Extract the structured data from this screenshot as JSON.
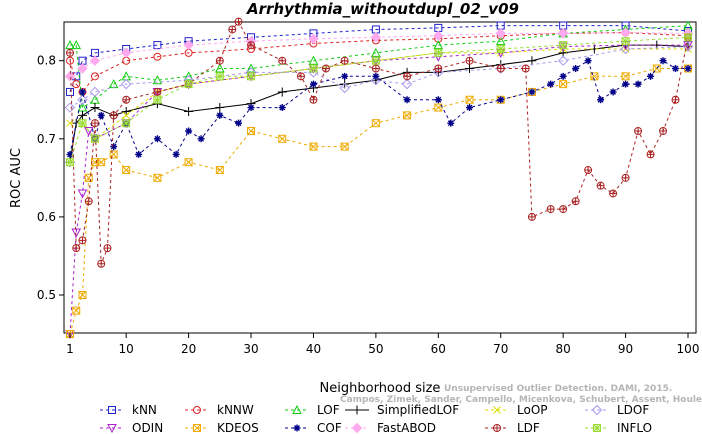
{
  "chart_data": {
    "type": "line",
    "title": "Arrhythmia_withoutdupl_02_v09",
    "xlabel": "Neighborhood size",
    "ylabel": "ROC AUC",
    "xlim": [
      0,
      100
    ],
    "ylim": [
      0.45,
      0.85
    ],
    "x_ticks": [
      1,
      10,
      20,
      30,
      40,
      50,
      60,
      70,
      80,
      90,
      100
    ],
    "y_ticks": [
      0.5,
      0.6,
      0.7,
      0.8
    ],
    "grid": false,
    "legend_position": "bottom",
    "watermark": [
      "Unsupervised Outlier Detection. DAMI, 2015.",
      "Campos, Zimek, Sander, Campello, Micenkova, Schubert, Assent, Houle"
    ],
    "series": [
      {
        "name": "kNN",
        "color": "#2222cc",
        "marker": "square",
        "dash": "3,3",
        "points": [
          [
            1,
            0.76
          ],
          [
            2,
            0.78
          ],
          [
            3,
            0.8
          ],
          [
            5,
            0.81
          ],
          [
            10,
            0.815
          ],
          [
            15,
            0.82
          ],
          [
            20,
            0.825
          ],
          [
            30,
            0.83
          ],
          [
            40,
            0.835
          ],
          [
            50,
            0.84
          ],
          [
            60,
            0.842
          ],
          [
            70,
            0.845
          ],
          [
            80,
            0.845
          ],
          [
            90,
            0.845
          ],
          [
            100,
            0.838
          ]
        ]
      },
      {
        "name": "kNNW",
        "color": "#dd2222",
        "marker": "circle",
        "dash": "3,3",
        "points": [
          [
            1,
            0.8
          ],
          [
            2,
            0.77
          ],
          [
            3,
            0.76
          ],
          [
            5,
            0.78
          ],
          [
            10,
            0.8
          ],
          [
            15,
            0.805
          ],
          [
            20,
            0.81
          ],
          [
            30,
            0.815
          ],
          [
            40,
            0.822
          ],
          [
            50,
            0.826
          ],
          [
            60,
            0.828
          ],
          [
            70,
            0.832
          ],
          [
            80,
            0.835
          ],
          [
            90,
            0.836
          ],
          [
            100,
            0.832
          ]
        ]
      },
      {
        "name": "LOF",
        "color": "#11cc11",
        "marker": "triangle",
        "dash": "3,3",
        "points": [
          [
            1,
            0.82
          ],
          [
            2,
            0.82
          ],
          [
            3,
            0.74
          ],
          [
            5,
            0.75
          ],
          [
            8,
            0.77
          ],
          [
            10,
            0.78
          ],
          [
            15,
            0.775
          ],
          [
            20,
            0.78
          ],
          [
            25,
            0.79
          ],
          [
            30,
            0.79
          ],
          [
            40,
            0.8
          ],
          [
            50,
            0.81
          ],
          [
            60,
            0.82
          ],
          [
            70,
            0.825
          ],
          [
            80,
            0.835
          ],
          [
            90,
            0.84
          ],
          [
            100,
            0.845
          ]
        ]
      },
      {
        "name": "SimplifiedLOF",
        "color": "#000000",
        "marker": "plus",
        "dash": "",
        "points": [
          [
            1,
            0.67
          ],
          [
            2,
            0.72
          ],
          [
            3,
            0.73
          ],
          [
            5,
            0.74
          ],
          [
            8,
            0.73
          ],
          [
            10,
            0.735
          ],
          [
            15,
            0.745
          ],
          [
            20,
            0.735
          ],
          [
            25,
            0.74
          ],
          [
            30,
            0.745
          ],
          [
            35,
            0.76
          ],
          [
            40,
            0.765
          ],
          [
            45,
            0.77
          ],
          [
            50,
            0.775
          ],
          [
            55,
            0.785
          ],
          [
            60,
            0.785
          ],
          [
            65,
            0.79
          ],
          [
            70,
            0.795
          ],
          [
            75,
            0.8
          ],
          [
            80,
            0.81
          ],
          [
            85,
            0.815
          ],
          [
            90,
            0.82
          ],
          [
            95,
            0.82
          ],
          [
            100,
            0.818
          ]
        ]
      },
      {
        "name": "LoOP",
        "color": "#dddd00",
        "marker": "x",
        "dash": "3,3",
        "points": [
          [
            1,
            0.72
          ],
          [
            3,
            0.72
          ],
          [
            5,
            0.7
          ],
          [
            10,
            0.73
          ],
          [
            15,
            0.76
          ],
          [
            20,
            0.77
          ],
          [
            30,
            0.78
          ],
          [
            40,
            0.79
          ],
          [
            50,
            0.8
          ],
          [
            60,
            0.81
          ],
          [
            70,
            0.81
          ],
          [
            80,
            0.815
          ],
          [
            90,
            0.815
          ],
          [
            100,
            0.815
          ]
        ]
      },
      {
        "name": "LDOF",
        "color": "#aa99ee",
        "marker": "diamond",
        "dash": "3,3",
        "points": [
          [
            1,
            0.74
          ],
          [
            3,
            0.75
          ],
          [
            5,
            0.76
          ],
          [
            10,
            0.77
          ],
          [
            20,
            0.775
          ],
          [
            30,
            0.785
          ],
          [
            40,
            0.785
          ],
          [
            45,
            0.765
          ],
          [
            50,
            0.775
          ],
          [
            55,
            0.77
          ],
          [
            60,
            0.785
          ],
          [
            70,
            0.79
          ],
          [
            80,
            0.8
          ],
          [
            90,
            0.815
          ],
          [
            100,
            0.818
          ]
        ]
      },
      {
        "name": "ODIN",
        "color": "#aa22cc",
        "marker": "triangle-down",
        "dash": "3,3",
        "points": [
          [
            1,
            0.45
          ],
          [
            2,
            0.58
          ],
          [
            3,
            0.63
          ],
          [
            4,
            0.71
          ],
          [
            5,
            0.7
          ],
          [
            10,
            0.72
          ],
          [
            15,
            0.76
          ],
          [
            20,
            0.77
          ],
          [
            30,
            0.78
          ],
          [
            40,
            0.79
          ],
          [
            50,
            0.8
          ],
          [
            60,
            0.805
          ],
          [
            70,
            0.81
          ],
          [
            80,
            0.818
          ],
          [
            90,
            0.82
          ],
          [
            100,
            0.82
          ]
        ]
      },
      {
        "name": "KDEOS",
        "color": "#eeaa00",
        "marker": "square-x",
        "dash": "3,3",
        "points": [
          [
            1,
            0.45
          ],
          [
            2,
            0.48
          ],
          [
            3,
            0.5
          ],
          [
            4,
            0.65
          ],
          [
            5,
            0.67
          ],
          [
            6,
            0.67
          ],
          [
            8,
            0.68
          ],
          [
            10,
            0.66
          ],
          [
            15,
            0.65
          ],
          [
            20,
            0.67
          ],
          [
            25,
            0.66
          ],
          [
            30,
            0.71
          ],
          [
            35,
            0.7
          ],
          [
            40,
            0.69
          ],
          [
            45,
            0.69
          ],
          [
            50,
            0.72
          ],
          [
            55,
            0.73
          ],
          [
            60,
            0.74
          ],
          [
            65,
            0.75
          ],
          [
            70,
            0.75
          ],
          [
            75,
            0.76
          ],
          [
            80,
            0.77
          ],
          [
            85,
            0.78
          ],
          [
            90,
            0.78
          ],
          [
            95,
            0.79
          ],
          [
            100,
            0.79
          ]
        ]
      },
      {
        "name": "COF",
        "color": "#000088",
        "marker": "asterisk",
        "dash": "3,3",
        "points": [
          [
            1,
            0.68
          ],
          [
            3,
            0.76
          ],
          [
            5,
            0.7
          ],
          [
            6,
            0.73
          ],
          [
            8,
            0.69
          ],
          [
            10,
            0.72
          ],
          [
            12,
            0.68
          ],
          [
            15,
            0.7
          ],
          [
            18,
            0.68
          ],
          [
            20,
            0.71
          ],
          [
            22,
            0.7
          ],
          [
            25,
            0.73
          ],
          [
            28,
            0.72
          ],
          [
            30,
            0.74
          ],
          [
            35,
            0.74
          ],
          [
            40,
            0.77
          ],
          [
            45,
            0.78
          ],
          [
            50,
            0.78
          ],
          [
            55,
            0.75
          ],
          [
            60,
            0.75
          ],
          [
            62,
            0.72
          ],
          [
            65,
            0.74
          ],
          [
            70,
            0.75
          ],
          [
            75,
            0.76
          ],
          [
            78,
            0.77
          ],
          [
            80,
            0.78
          ],
          [
            82,
            0.79
          ],
          [
            84,
            0.8
          ],
          [
            86,
            0.75
          ],
          [
            88,
            0.76
          ],
          [
            90,
            0.77
          ],
          [
            92,
            0.77
          ],
          [
            94,
            0.78
          ],
          [
            96,
            0.8
          ],
          [
            98,
            0.79
          ],
          [
            100,
            0.79
          ]
        ]
      },
      {
        "name": "FastABOD",
        "color": "#ffaaee",
        "marker": "diamond-filled",
        "dash": "3,3",
        "points": [
          [
            1,
            0.78
          ],
          [
            3,
            0.79
          ],
          [
            5,
            0.8
          ],
          [
            10,
            0.81
          ],
          [
            20,
            0.82
          ],
          [
            30,
            0.825
          ],
          [
            40,
            0.828
          ],
          [
            50,
            0.83
          ],
          [
            60,
            0.832
          ],
          [
            70,
            0.835
          ],
          [
            80,
            0.835
          ],
          [
            90,
            0.836
          ],
          [
            100,
            0.835
          ]
        ]
      },
      {
        "name": "LDF",
        "color": "#aa2222",
        "marker": "circle-plus",
        "dash": "3,3",
        "points": [
          [
            1,
            0.81
          ],
          [
            2,
            0.56
          ],
          [
            3,
            0.57
          ],
          [
            4,
            0.62
          ],
          [
            5,
            0.72
          ],
          [
            6,
            0.54
          ],
          [
            7,
            0.56
          ],
          [
            8,
            0.73
          ],
          [
            10,
            0.75
          ],
          [
            15,
            0.76
          ],
          [
            20,
            0.77
          ],
          [
            25,
            0.8
          ],
          [
            27,
            0.84
          ],
          [
            28,
            0.85
          ],
          [
            30,
            0.82
          ],
          [
            35,
            0.8
          ],
          [
            38,
            0.78
          ],
          [
            40,
            0.75
          ],
          [
            42,
            0.79
          ],
          [
            45,
            0.8
          ],
          [
            50,
            0.79
          ],
          [
            55,
            0.78
          ],
          [
            60,
            0.79
          ],
          [
            65,
            0.8
          ],
          [
            70,
            0.79
          ],
          [
            74,
            0.79
          ],
          [
            75,
            0.6
          ],
          [
            78,
            0.61
          ],
          [
            80,
            0.61
          ],
          [
            82,
            0.62
          ],
          [
            84,
            0.66
          ],
          [
            86,
            0.64
          ],
          [
            88,
            0.63
          ],
          [
            90,
            0.65
          ],
          [
            92,
            0.71
          ],
          [
            94,
            0.68
          ],
          [
            96,
            0.71
          ],
          [
            98,
            0.75
          ],
          [
            100,
            0.83
          ]
        ]
      },
      {
        "name": "INFLO",
        "color": "#99dd33",
        "marker": "square-star",
        "dash": "3,3",
        "points": [
          [
            1,
            0.67
          ],
          [
            3,
            0.72
          ],
          [
            5,
            0.7
          ],
          [
            10,
            0.72
          ],
          [
            15,
            0.75
          ],
          [
            20,
            0.77
          ],
          [
            25,
            0.78
          ],
          [
            30,
            0.78
          ],
          [
            40,
            0.79
          ],
          [
            50,
            0.8
          ],
          [
            60,
            0.81
          ],
          [
            70,
            0.815
          ],
          [
            80,
            0.82
          ],
          [
            90,
            0.825
          ],
          [
            100,
            0.83
          ]
        ]
      }
    ],
    "legend_order": [
      "kNN",
      "kNNW",
      "LOF",
      "SimplifiedLOF",
      "LoOP",
      "LDOF",
      "ODIN",
      "KDEOS",
      "COF",
      "FastABOD",
      "LDF",
      "INFLO"
    ]
  }
}
